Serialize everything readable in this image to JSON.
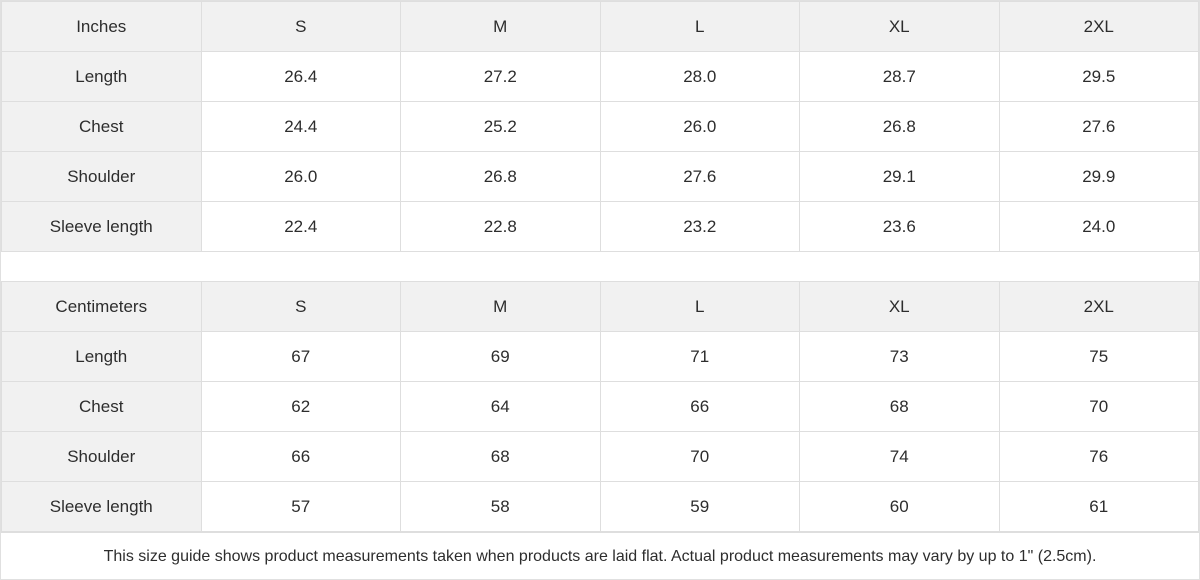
{
  "chart_data": [
    {
      "type": "table",
      "unit_label": "Inches",
      "sizes": [
        "S",
        "M",
        "L",
        "XL",
        "2XL"
      ],
      "rows": [
        {
          "label": "Length",
          "values": [
            "26.4",
            "27.2",
            "28.0",
            "28.7",
            "29.5"
          ]
        },
        {
          "label": "Chest",
          "values": [
            "24.4",
            "25.2",
            "26.0",
            "26.8",
            "27.6"
          ]
        },
        {
          "label": "Shoulder",
          "values": [
            "26.0",
            "26.8",
            "27.6",
            "29.1",
            "29.9"
          ]
        },
        {
          "label": "Sleeve length",
          "values": [
            "22.4",
            "22.8",
            "23.2",
            "23.6",
            "24.0"
          ]
        }
      ]
    },
    {
      "type": "table",
      "unit_label": "Centimeters",
      "sizes": [
        "S",
        "M",
        "L",
        "XL",
        "2XL"
      ],
      "rows": [
        {
          "label": "Length",
          "values": [
            "67",
            "69",
            "71",
            "73",
            "75"
          ]
        },
        {
          "label": "Chest",
          "values": [
            "62",
            "64",
            "66",
            "68",
            "70"
          ]
        },
        {
          "label": "Shoulder",
          "values": [
            "66",
            "68",
            "70",
            "74",
            "76"
          ]
        },
        {
          "label": "Sleeve length",
          "values": [
            "57",
            "58",
            "59",
            "60",
            "61"
          ]
        }
      ]
    }
  ],
  "footer": {
    "note": "This size guide shows product measurements taken when products are laid flat.  Actual product measurements may vary by up to 1\" (2.5cm)."
  },
  "colors": {
    "header_bg": "#f1f1f1",
    "cell_bg": "#ffffff",
    "border": "#dedede",
    "text": "#2d2d2d"
  }
}
